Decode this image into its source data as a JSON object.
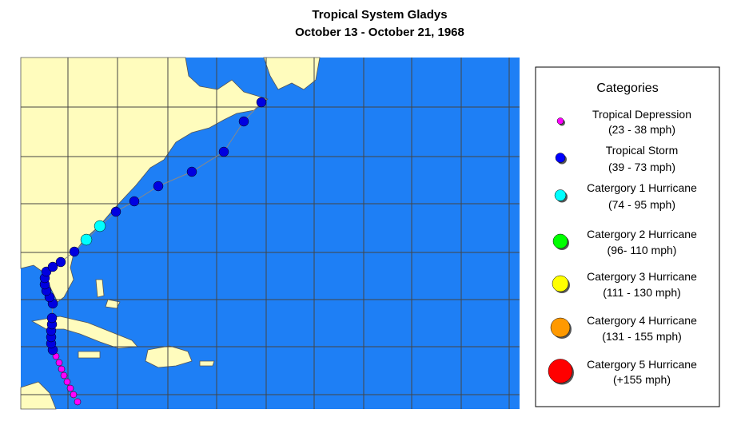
{
  "title": "Tropical System Gladys",
  "subtitle": "October 13 - October 21, 1968",
  "legend": {
    "title": "Categories",
    "items": [
      {
        "name": "Tropical Depression",
        "range": "(23 - 38 mph)",
        "color": "#ff00ff"
      },
      {
        "name": "Tropical Storm",
        "range": "(39 - 73 mph)",
        "color": "#0000ff"
      },
      {
        "name": "Catergory 1 Hurricane",
        "range": "(74 - 95 mph)",
        "color": "#00ffff"
      },
      {
        "name": "Catergory 2 Hurricane",
        "range": "(96- 110 mph)",
        "color": "#00ff00"
      },
      {
        "name": "Catergory 3 Hurricane",
        "range": "(111 - 130 mph)",
        "color": "#ffff00"
      },
      {
        "name": "Catergory 4 Hurricane",
        "range": "(131 - 155 mph)",
        "color": "#ff9900"
      },
      {
        "name": "Catergory 5 Hurricane",
        "range": "(+155 mph)",
        "color": "#ff0000"
      }
    ]
  }
}
